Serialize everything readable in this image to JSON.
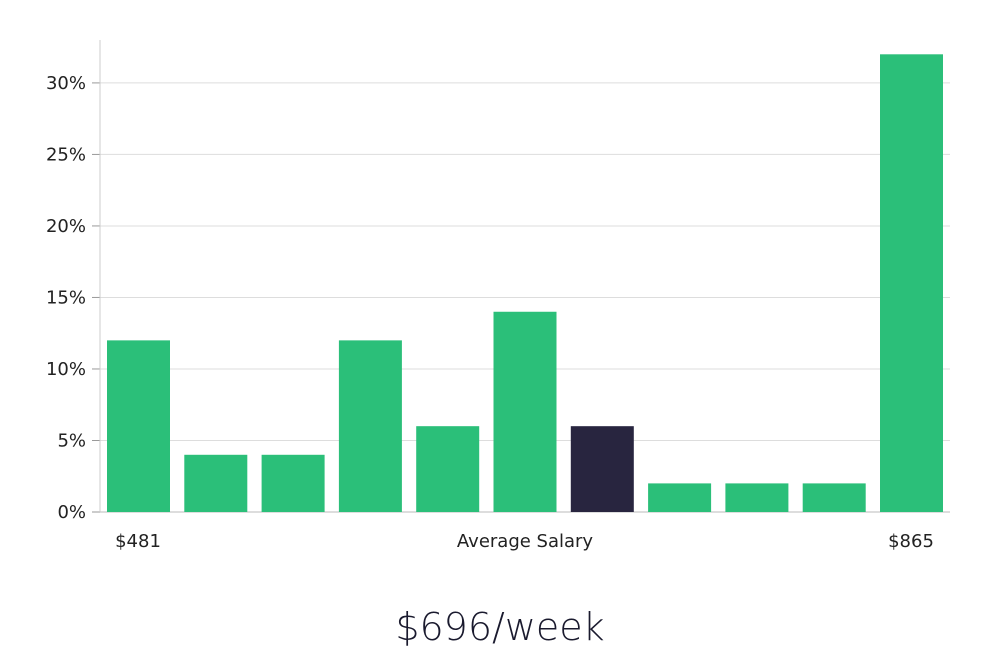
{
  "chart_data": {
    "type": "bar",
    "title": "",
    "xlabel": "Average Salary",
    "ylabel": "",
    "x_start_label": "$481",
    "x_end_label": "$865",
    "values": [
      12,
      4,
      4,
      12,
      6,
      14,
      6,
      2,
      2,
      2,
      32
    ],
    "highlight_index": 6,
    "ylim": [
      0,
      33
    ],
    "yticks": [
      0,
      5,
      10,
      15,
      20,
      25,
      30
    ],
    "ytick_labels": [
      "0%",
      "5%",
      "10%",
      "15%",
      "20%",
      "25%",
      "30%"
    ],
    "colors": {
      "bar": "#2bbf79",
      "highlight": "#28253f",
      "grid": "#dddddd"
    },
    "grid": true
  },
  "summary": {
    "value": "$696/week"
  }
}
